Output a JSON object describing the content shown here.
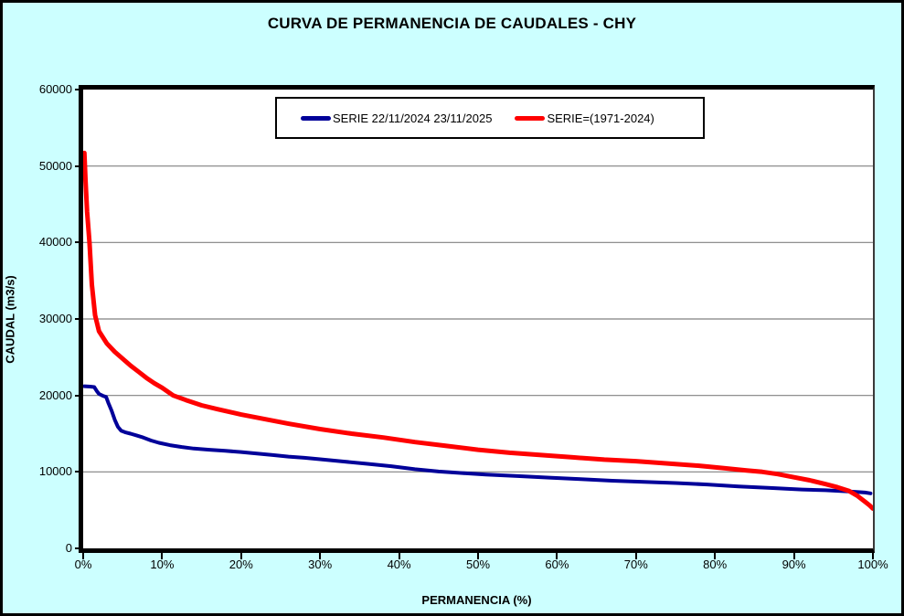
{
  "title": "CURVA DE PERMANENCIA DE CAUDALES - CHY",
  "legend": {
    "items": [
      {
        "label": "SERIE 22/11/2024 23/11/2025",
        "color": "#000099"
      },
      {
        "label": "SERIE=(1971-2024)",
        "color": "#FF0000"
      }
    ]
  },
  "colors": {
    "background": "#CCFFFF",
    "plot_background": "#FFFFFF",
    "grid": "#808080",
    "axis": "#000000"
  },
  "chart_data": {
    "type": "line",
    "title": "CURVA DE PERMANENCIA DE CAUDALES - CHY",
    "xlabel": "PERMANENCIA (%)",
    "ylabel": "CAUDAL (m3/s)",
    "xlim": [
      0,
      100
    ],
    "ylim": [
      0,
      60000
    ],
    "x_tick_values": [
      0,
      10,
      20,
      30,
      40,
      50,
      60,
      70,
      80,
      90,
      100
    ],
    "x_tick_labels": [
      "0%",
      "10%",
      "20%",
      "30%",
      "40%",
      "50%",
      "60%",
      "70%",
      "80%",
      "90%",
      "100%"
    ],
    "y_tick_values": [
      0,
      10000,
      20000,
      30000,
      40000,
      50000,
      60000
    ],
    "y_tick_labels": [
      "0",
      "10000",
      "20000",
      "30000",
      "40000",
      "50000",
      "60000"
    ],
    "grid": "horizontal",
    "legend_position": "top-center",
    "series": [
      {
        "name": "SERIE 22/11/2024 23/11/2025",
        "color": "#000099",
        "width": 4,
        "points": [
          [
            0.15,
            21200
          ],
          [
            0.9,
            21150
          ],
          [
            1.4,
            21100
          ],
          [
            1.7,
            20600
          ],
          [
            2.0,
            20200
          ],
          [
            2.5,
            19950
          ],
          [
            2.9,
            19800
          ],
          [
            3.2,
            19000
          ],
          [
            3.6,
            18000
          ],
          [
            4.0,
            16800
          ],
          [
            4.4,
            15900
          ],
          [
            4.8,
            15400
          ],
          [
            5.4,
            15150
          ],
          [
            6.0,
            15000
          ],
          [
            6.8,
            14750
          ],
          [
            7.6,
            14500
          ],
          [
            8.6,
            14100
          ],
          [
            9.6,
            13800
          ],
          [
            11,
            13500
          ],
          [
            12.5,
            13250
          ],
          [
            14,
            13050
          ],
          [
            16,
            12900
          ],
          [
            18,
            12750
          ],
          [
            20,
            12600
          ],
          [
            22,
            12400
          ],
          [
            24,
            12200
          ],
          [
            26,
            12000
          ],
          [
            28,
            11850
          ],
          [
            30,
            11650
          ],
          [
            33,
            11350
          ],
          [
            36,
            11050
          ],
          [
            39,
            10750
          ],
          [
            42,
            10350
          ],
          [
            45,
            10050
          ],
          [
            48,
            9850
          ],
          [
            51,
            9650
          ],
          [
            55,
            9450
          ],
          [
            59,
            9250
          ],
          [
            63,
            9050
          ],
          [
            67,
            8850
          ],
          [
            71,
            8700
          ],
          [
            75,
            8550
          ],
          [
            79,
            8350
          ],
          [
            83,
            8100
          ],
          [
            87,
            7900
          ],
          [
            91,
            7700
          ],
          [
            94,
            7600
          ],
          [
            97,
            7450
          ],
          [
            99,
            7300
          ],
          [
            99.7,
            7200
          ]
        ]
      },
      {
        "name": "SERIE=(1971-2024)",
        "color": "#FF0000",
        "width": 5,
        "points": [
          [
            0.15,
            51700
          ],
          [
            0.3,
            48000
          ],
          [
            0.5,
            44000
          ],
          [
            0.8,
            40000
          ],
          [
            1.1,
            34500
          ],
          [
            1.5,
            30500
          ],
          [
            2.0,
            28400
          ],
          [
            3.0,
            26800
          ],
          [
            4.0,
            25700
          ],
          [
            5.0,
            24800
          ],
          [
            6.0,
            23900
          ],
          [
            7.0,
            23100
          ],
          [
            8.0,
            22300
          ],
          [
            9.0,
            21600
          ],
          [
            10,
            21000
          ],
          [
            11.4,
            20000
          ],
          [
            13,
            19400
          ],
          [
            15,
            18700
          ],
          [
            17,
            18200
          ],
          [
            20,
            17500
          ],
          [
            23,
            16900
          ],
          [
            26,
            16300
          ],
          [
            30,
            15600
          ],
          [
            34,
            15000
          ],
          [
            38,
            14500
          ],
          [
            42,
            13900
          ],
          [
            46,
            13400
          ],
          [
            50,
            12900
          ],
          [
            54,
            12500
          ],
          [
            58,
            12200
          ],
          [
            62,
            11900
          ],
          [
            66,
            11600
          ],
          [
            70,
            11400
          ],
          [
            74,
            11100
          ],
          [
            78,
            10800
          ],
          [
            81,
            10500
          ],
          [
            84,
            10200
          ],
          [
            86,
            10000
          ],
          [
            88,
            9700
          ],
          [
            90,
            9300
          ],
          [
            92,
            8900
          ],
          [
            94,
            8400
          ],
          [
            95.5,
            8000
          ],
          [
            97,
            7500
          ],
          [
            98,
            6900
          ],
          [
            99,
            6100
          ],
          [
            99.6,
            5600
          ],
          [
            100,
            5200
          ]
        ]
      }
    ]
  }
}
